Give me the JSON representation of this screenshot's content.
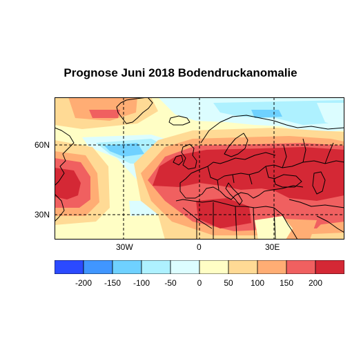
{
  "title": "Prognose Juni 2018 Bodendruckanomalie",
  "map": {
    "lat_ticks": [
      {
        "label": "60N",
        "lat": 60
      },
      {
        "label": "30N",
        "lat": 30
      }
    ],
    "lon_ticks": [
      {
        "label": "30W",
        "lon": -30
      },
      {
        "label": "0",
        "lon": 0
      },
      {
        "label": "30E",
        "lon": 30
      }
    ],
    "grid": "dashed lines at 30 degree intervals",
    "extent_lon": [
      -60,
      60
    ],
    "extent_lat": [
      20,
      80
    ]
  },
  "colorbar": {
    "colors": [
      "#2b4aff",
      "#4096ff",
      "#6fd1ff",
      "#aef1ff",
      "#dcfdff",
      "#fffec5",
      "#ffda95",
      "#ffad74",
      "#f06060",
      "#d42835"
    ],
    "tick_labels": [
      "-200",
      "-150",
      "-100",
      "-50",
      "0",
      "50",
      "100",
      "150",
      "200"
    ]
  },
  "chart_data": {
    "type": "heatmap",
    "title": "Prognose Juni 2018 Bodendruckanomalie",
    "variable": "Bodendruckanomalie",
    "scale_bins": [
      -200,
      -150,
      -100,
      -50,
      0,
      50,
      100,
      150,
      200
    ],
    "lon_range": [
      -60,
      60
    ],
    "lat_range": [
      20,
      80
    ],
    "anomaly_regions": [
      {
        "region": "Europe / Mitteleuropa bis Osteuropa",
        "value_range": [
          150,
          250
        ]
      },
      {
        "region": "North Africa (Sahara)",
        "value_range": [
          150,
          250
        ]
      },
      {
        "region": "Western Atlantic near North America (30-50N)",
        "value_range": [
          150,
          250
        ]
      },
      {
        "region": "Central Atlantic around 55-60N, 30-40W",
        "value_range": [
          -100,
          -50
        ]
      },
      {
        "region": "Northern Scandinavia / Barents Sea",
        "value_range": [
          -100,
          -50
        ]
      },
      {
        "region": "Southern Greenland",
        "value_range": [
          100,
          150
        ]
      },
      {
        "region": "Subtropical Atlantic",
        "value_range": [
          0,
          50
        ]
      }
    ]
  }
}
